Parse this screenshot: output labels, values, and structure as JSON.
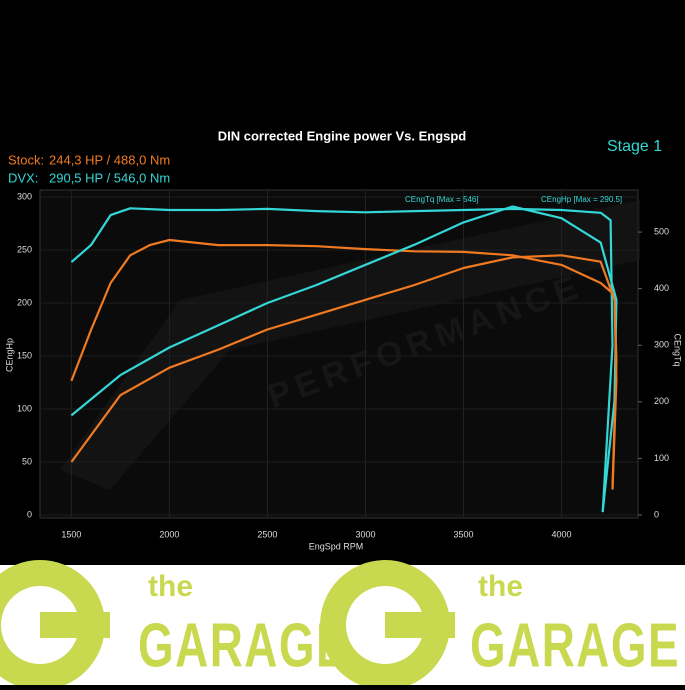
{
  "chart_data": {
    "type": "line",
    "title": "DIN corrected Engine power Vs. Engspd",
    "subtitle": "Stage 1",
    "xlabel": "EngSpd RPM",
    "ylabel": "CEngHp",
    "y2label": "CEngTq",
    "legend": [
      {
        "label": "Stock:",
        "text": "244,3 HP / 488,0 Nm",
        "color": "#f07a22"
      },
      {
        "label": "DVX:",
        "text": "290,5 HP / 546,0 Nm",
        "color": "#34d6d6"
      }
    ],
    "annotations": [
      "CEngTq [Max = 546]",
      "CEngHp [Max = 290.5]"
    ],
    "watermark": "PERFORMANCE",
    "xlim": [
      1340,
      4390
    ],
    "xticks": [
      1500,
      2000,
      2500,
      3000,
      3500,
      4000
    ],
    "ylim": [
      0,
      300
    ],
    "yticks": [
      0,
      50,
      100,
      150,
      200,
      250,
      300
    ],
    "y2lim": [
      0,
      562
    ],
    "y2ticks": [
      0,
      100,
      200,
      300,
      400,
      500
    ],
    "grid": true,
    "series": [
      {
        "color": "#34d6d6",
        "axis": "y2",
        "x": [
          1500,
          1600,
          1700,
          1800,
          2000,
          2250,
          2500,
          2750,
          3000,
          3250,
          3500,
          3750,
          4000,
          4200,
          4250,
          4260,
          4210
        ],
        "values": [
          447,
          477,
          530,
          542,
          539,
          539,
          541,
          537,
          535,
          537,
          539,
          541,
          539,
          534,
          521,
          300,
          5
        ]
      },
      {
        "color": "#f07a22",
        "axis": "y2",
        "x": [
          1500,
          1600,
          1700,
          1800,
          1900,
          2000,
          2250,
          2500,
          2750,
          3000,
          3250,
          3500,
          3750,
          4000,
          4200,
          4270,
          4280,
          4260
        ],
        "values": [
          237,
          327,
          410,
          459,
          477,
          486,
          477,
          477,
          475,
          470,
          466,
          465,
          459,
          442,
          410,
          389,
          274,
          48
        ]
      },
      {
        "color": "#34d6d6",
        "axis": "y",
        "x": [
          1500,
          1750,
          2000,
          2250,
          2500,
          2750,
          3000,
          3250,
          3500,
          3750,
          4000,
          4200,
          4280,
          4270,
          4210
        ],
        "values": [
          94,
          132,
          158,
          179,
          200,
          217,
          236,
          255,
          276,
          291,
          280,
          257,
          203,
          108,
          3
        ]
      },
      {
        "color": "#f07a22",
        "axis": "y",
        "x": [
          1500,
          1750,
          2000,
          2250,
          2500,
          2750,
          3000,
          3250,
          3500,
          3750,
          4000,
          4200,
          4270,
          4280,
          4260
        ],
        "values": [
          50,
          113,
          139,
          156,
          175,
          189,
          203,
          217,
          233,
          243,
          245,
          239,
          203,
          127,
          24
        ]
      }
    ]
  },
  "banner": {
    "brand_small": "the",
    "brand": "GARAGE"
  }
}
